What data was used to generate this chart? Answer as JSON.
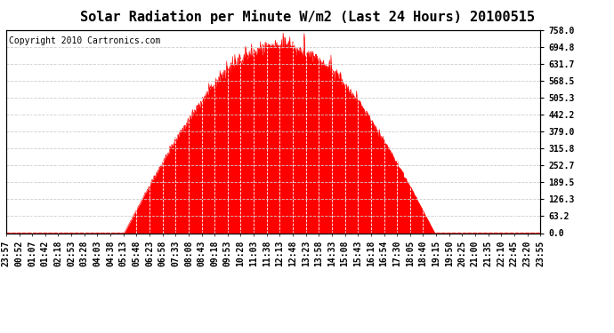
{
  "title": "Solar Radiation per Minute W/m2 (Last 24 Hours) 20100515",
  "copyright": "Copyright 2010 Cartronics.com",
  "y_ticks": [
    0.0,
    63.2,
    126.3,
    189.5,
    252.7,
    315.8,
    379.0,
    442.2,
    505.3,
    568.5,
    631.7,
    694.8,
    758.0
  ],
  "y_max": 758.0,
  "y_min": 0.0,
  "fill_color": "#FF0000",
  "line_color": "#FF0000",
  "bg_color": "#FFFFFF",
  "grid_color_h": "#CCCCCC",
  "grid_color_v": "#FFFFFF",
  "dashed_line_color": "#FF0000",
  "title_fontsize": 11,
  "copyright_fontsize": 7,
  "tick_labels_fontsize": 7,
  "x_tick_labels": [
    "23:57",
    "00:52",
    "01:07",
    "01:42",
    "02:18",
    "02:53",
    "03:28",
    "04:03",
    "04:38",
    "05:13",
    "05:48",
    "06:23",
    "06:58",
    "07:33",
    "08:08",
    "08:43",
    "09:18",
    "09:53",
    "10:28",
    "11:03",
    "11:38",
    "12:13",
    "12:48",
    "13:23",
    "13:58",
    "14:33",
    "15:08",
    "15:43",
    "16:18",
    "16:54",
    "17:30",
    "18:05",
    "18:40",
    "19:15",
    "19:50",
    "20:25",
    "21:00",
    "21:35",
    "22:10",
    "22:45",
    "23:20",
    "23:55"
  ],
  "sunrise_idx": 318,
  "sunset_idx": 1155,
  "solar_noon_idx": 690,
  "max_radiation": 758.0,
  "noise_seed": 10
}
